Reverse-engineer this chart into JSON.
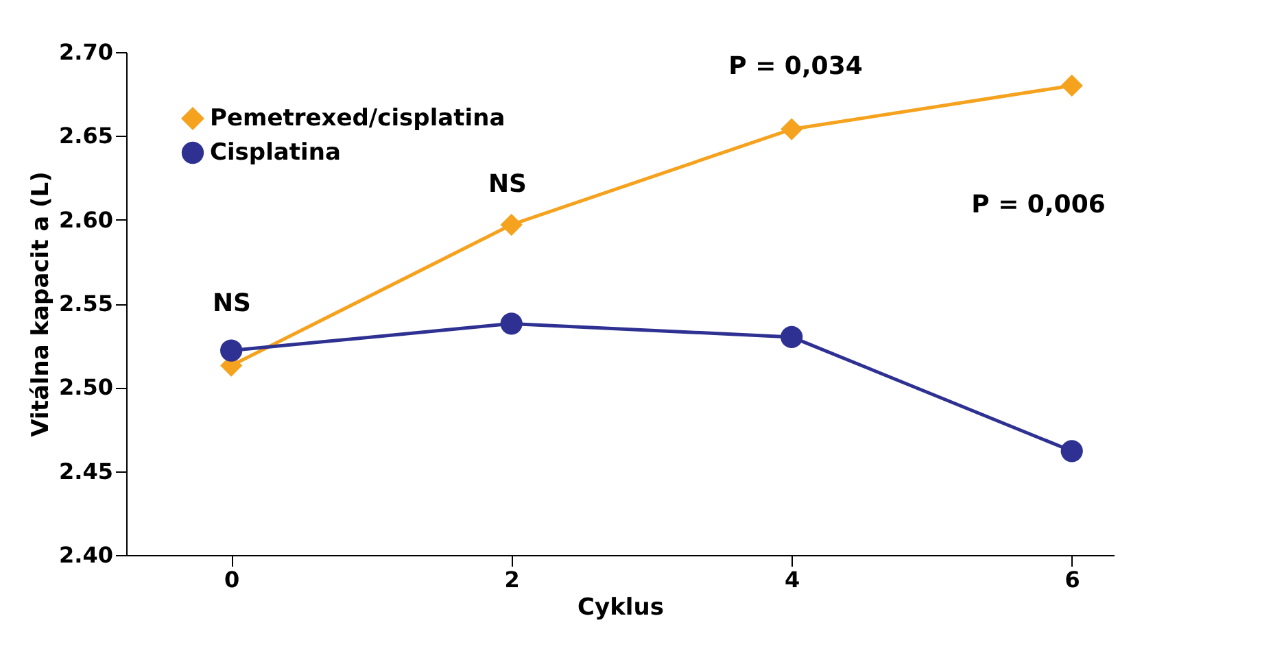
{
  "chart_data": {
    "type": "line",
    "xlabel": "Cyklus",
    "ylabel": "Vitálna kapacit a (L)",
    "x": [
      0,
      2,
      4,
      6
    ],
    "series": [
      {
        "name": "Pemetrexed/cisplatina",
        "color": "#f5a21e",
        "marker": "diamond",
        "values": [
          2.513,
          2.597,
          2.654,
          2.68
        ]
      },
      {
        "name": "Cisplatina",
        "color": "#2e3192",
        "marker": "circle",
        "values": [
          2.522,
          2.538,
          2.53,
          2.462
        ]
      }
    ],
    "xlim": [
      -0.75,
      6.3
    ],
    "xticks": [
      0,
      2,
      4,
      6
    ],
    "ylim": [
      2.4,
      2.7
    ],
    "yticks": [
      {
        "value": 2.4,
        "label": "2.40"
      },
      {
        "value": 2.45,
        "label": "2.45"
      },
      {
        "value": 2.5,
        "label": "2.50"
      },
      {
        "value": 2.55,
        "label": "2.55"
      },
      {
        "value": 2.6,
        "label": "2.60"
      },
      {
        "value": 2.65,
        "label": "2.65"
      },
      {
        "value": 2.7,
        "label": "2.70"
      }
    ],
    "annotations": [
      "NS",
      "NS",
      "P = 0,034",
      "P = 0,006"
    ],
    "grid": false,
    "legend": "top left",
    "line_style": "solid"
  }
}
